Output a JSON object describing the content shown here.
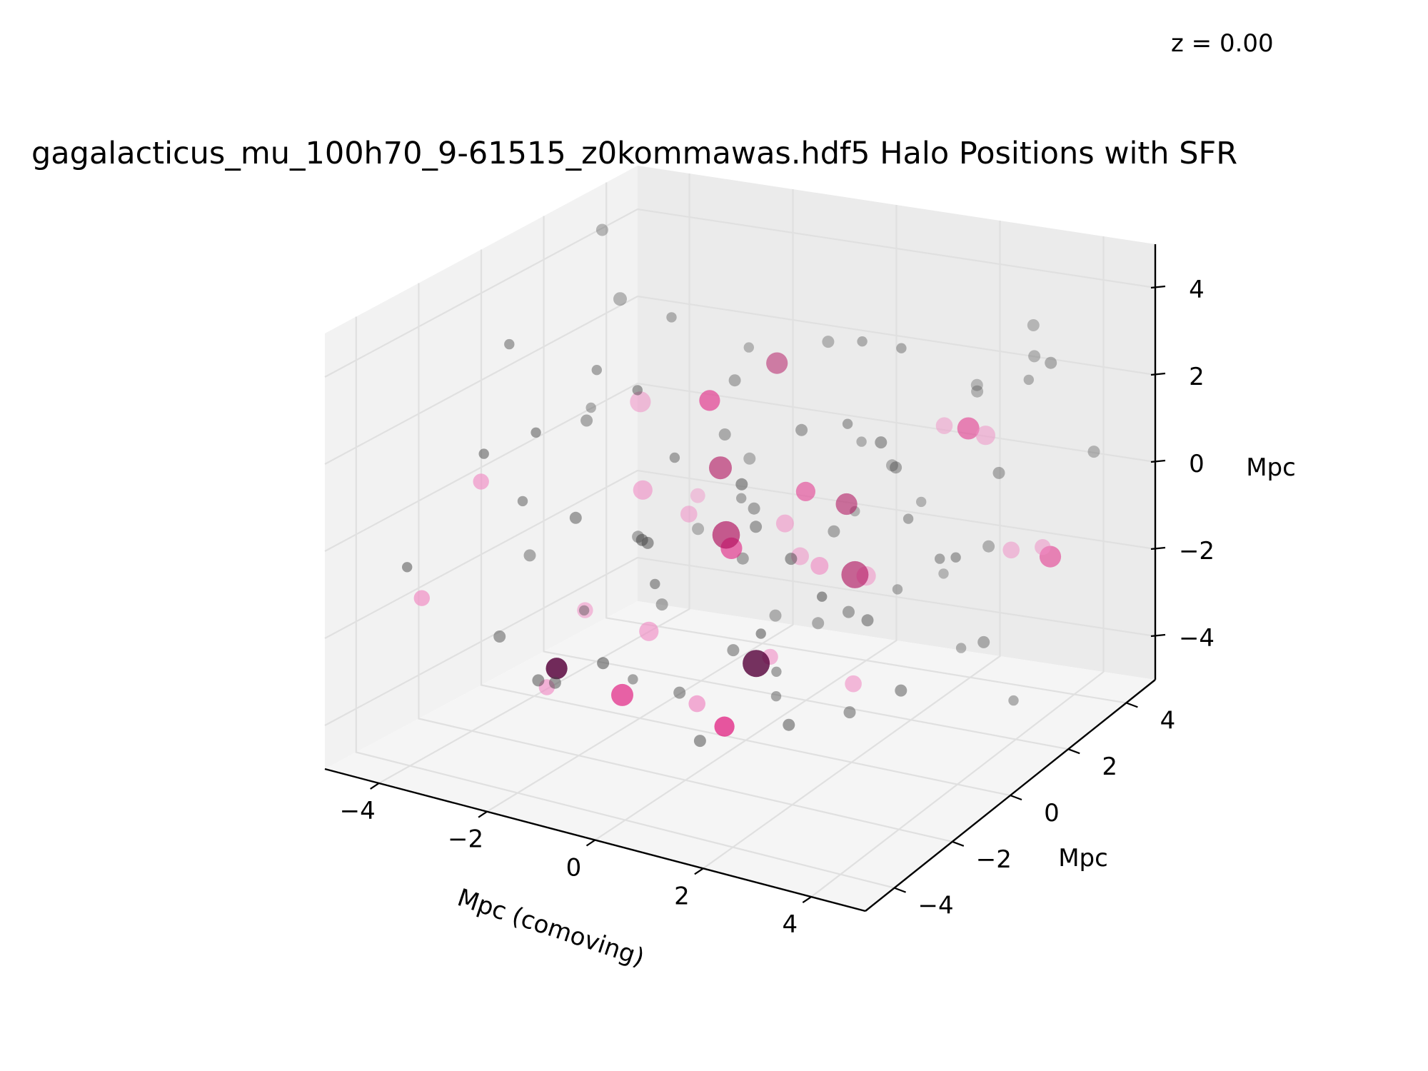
{
  "chart_data": {
    "type": "scatter",
    "projection": "3d",
    "title": "gagalacticus_mu_100h70_9-61515_z0kommawas.hdf5 Halo Positions with SFR",
    "annotation": "z = 0.00",
    "xlabel": "Mpc (comoving)",
    "ylabel": "Mpc",
    "zlabel": "Mpc",
    "xlim": [
      -5,
      5
    ],
    "ylim": [
      -5,
      5
    ],
    "zlim": [
      -5,
      5
    ],
    "x_ticks": [
      -4,
      -2,
      0,
      2,
      4
    ],
    "y_ticks": [
      -4,
      -2,
      0,
      2,
      4
    ],
    "z_ticks": [
      -4,
      -2,
      0,
      2,
      4
    ],
    "x_tick_labels": [
      "−4",
      "−2",
      "0",
      "2",
      "4"
    ],
    "y_tick_labels": [
      "−4",
      "−2",
      "0",
      "2",
      "4"
    ],
    "z_tick_labels": [
      "−4",
      "−2",
      "0",
      "2",
      "4"
    ],
    "grid": true,
    "colors": {
      "pane_back": "#ebebeb",
      "pane_left": "#f2f2f2",
      "pane_floor": "#f5f5f5",
      "grid": "#e0e0e0",
      "no_sfr": "#444444",
      "sfr_low": "#f08cc4",
      "sfr_mid": "#e2348c",
      "sfr_high": "#b0105e",
      "sfr_peak": "#55003a"
    },
    "series": [
      {
        "values": [
          [
            -4.6,
            3.2,
            4.3,
            2
          ],
          [
            -3.9,
            2.6,
            3.1,
            3
          ],
          [
            3.1,
            4.2,
            3.2,
            2
          ],
          [
            4.6,
            3.6,
            0.9,
            2
          ],
          [
            -4.2,
            0.2,
            -1.9,
            2
          ],
          [
            -1.2,
            1.4,
            1.1,
            2
          ],
          [
            0.6,
            2.8,
            0.7,
            1
          ],
          [
            1.4,
            3.4,
            -0.8,
            1
          ],
          [
            -3.4,
            -1.4,
            0.2,
            1
          ],
          [
            -0.4,
            0.6,
            -1.2,
            2
          ],
          [
            2.4,
            1.2,
            0.1,
            1
          ],
          [
            3.8,
            2.8,
            2.8,
            1
          ],
          [
            -2.1,
            -2.6,
            -3.1,
            2
          ],
          [
            1.2,
            -1.1,
            -2.6,
            1
          ],
          [
            2.6,
            -3.2,
            -2.4,
            2
          ],
          [
            4.3,
            -0.6,
            0.6,
            1
          ],
          [
            0.2,
            -3.8,
            1.4,
            2
          ],
          [
            -3.0,
            3.6,
            -2.4,
            2
          ],
          [
            1.7,
            0.4,
            2.5,
            1
          ],
          [
            -0.9,
            -2.0,
            3.7,
            1
          ],
          [
            3.3,
            -1.8,
            -0.5,
            2
          ],
          [
            2.9,
            2.1,
            -3.2,
            1
          ],
          [
            -1.6,
            2.9,
            -0.2,
            2
          ],
          [
            0.8,
            -0.4,
            -3.6,
            1
          ],
          [
            -2.7,
            -0.2,
            2.9,
            1
          ],
          [
            4.0,
            0.9,
            -2.2,
            2
          ],
          [
            -0.3,
            -4.2,
            -1.4,
            2
          ],
          [
            1.9,
            4.4,
            1.5,
            2
          ],
          [
            -4.4,
            -3.4,
            -0.8,
            1
          ],
          [
            3.6,
            -3.9,
            1.2,
            1
          ],
          [
            -1.3,
            1.9,
            2.1,
            2
          ],
          [
            0.4,
            1.7,
            -3.0,
            2
          ],
          [
            2.2,
            -2.4,
            0.9,
            2
          ],
          [
            -3.7,
            1.1,
            -3.4,
            1
          ],
          [
            4.5,
            2.3,
            3.6,
            2
          ],
          [
            -2.2,
            3.9,
            1.8,
            1
          ],
          [
            0.1,
            0.1,
            0.3,
            2
          ],
          [
            1.1,
            1.0,
            -0.4,
            2
          ],
          [
            0.7,
            -0.9,
            0.5,
            2
          ],
          [
            -0.6,
            0.9,
            0.0,
            1
          ],
          [
            2.7,
            3.0,
            2.2,
            2
          ],
          [
            3.4,
            3.7,
            2.8,
            2
          ],
          [
            -3.2,
            -3.0,
            2.0,
            1
          ],
          [
            -1.9,
            -3.5,
            -2.6,
            2
          ],
          [
            0.9,
            2.3,
            3.3,
            1
          ],
          [
            2.0,
            -0.1,
            -1.5,
            2
          ],
          [
            -0.8,
            -1.6,
            -0.9,
            1
          ],
          [
            3.9,
            1.6,
            1.3,
            2
          ],
          [
            -4.1,
            2.0,
            0.8,
            1
          ],
          [
            1.5,
            -2.8,
            2.6,
            2
          ],
          [
            -2.5,
            0.8,
            -1.3,
            2
          ],
          [
            0.3,
            3.1,
            -1.1,
            1
          ],
          [
            2.5,
            0.6,
            1.6,
            2
          ],
          [
            -1.0,
            -0.6,
            1.5,
            1
          ],
          [
            3.0,
            -0.8,
            3.0,
            2
          ],
          [
            -3.6,
            -1.8,
            -2.8,
            2
          ],
          [
            1.8,
            1.9,
            -2.0,
            1
          ],
          [
            -0.2,
            -2.9,
            0.8,
            2
          ],
          [
            4.2,
            -2.3,
            -1.6,
            2
          ],
          [
            -2.8,
            2.4,
            3.0,
            1
          ],
          [
            0.5,
            -1.3,
            -2.2,
            2
          ],
          [
            1.3,
            2.6,
            0.4,
            2
          ],
          [
            -1.5,
            -1.1,
            -3.5,
            1
          ],
          [
            2.8,
            -1.5,
            -2.9,
            2
          ],
          [
            -0.5,
            3.6,
            2.4,
            2
          ],
          [
            3.5,
            0.3,
            -0.1,
            1
          ],
          [
            -3.3,
            0.5,
            1.3,
            2
          ],
          [
            0.0,
            -2.2,
            -2.9,
            2
          ],
          [
            1.6,
            3.8,
            -2.6,
            1
          ],
          [
            -2.0,
            -2.1,
            0.5,
            2
          ],
          [
            2.3,
            -3.6,
            -0.2,
            1
          ],
          [
            -4.0,
            -0.8,
            3.4,
            1
          ],
          [
            0.6,
            0.8,
            1.9,
            2
          ],
          [
            3.2,
            2.5,
            -1.0,
            2
          ],
          [
            -1.7,
            0.2,
            -2.4,
            2
          ],
          [
            2.1,
            1.5,
            3.8,
            1
          ],
          [
            -0.7,
            2.2,
            -3.3,
            2
          ],
          [
            1.0,
            -3.3,
            -3.2,
            2
          ],
          [
            4.4,
            1.2,
            -3.6,
            1
          ],
          [
            -2.4,
            -2.7,
            2.6,
            1
          ]
        ]
      },
      {
        "values": [
          [
            -3.1,
            1.9,
            1.2,
            11
          ],
          [
            -1.6,
            -0.6,
            0.6,
            9
          ],
          [
            0.4,
            0.6,
            -0.2,
            7
          ],
          [
            1.6,
            1.2,
            -1.4,
            9
          ],
          [
            3.2,
            2.4,
            1.6,
            9
          ],
          [
            2.4,
            -1.8,
            0.5,
            7
          ],
          [
            -3.6,
            -2.4,
            1.0,
            5
          ],
          [
            -3.3,
            4.1,
            -1.9,
            4
          ],
          [
            -2.6,
            -2.0,
            -3.6,
            5
          ],
          [
            1.0,
            -3.4,
            -2.3,
            6
          ],
          [
            3.8,
            2.2,
            -0.8,
            6
          ],
          [
            4.4,
            2.2,
            -0.6,
            5
          ],
          [
            -0.8,
            -1.8,
            -1.9,
            9
          ],
          [
            2.2,
            -0.3,
            -3.0,
            6
          ],
          [
            0.0,
            1.8,
            -1.6,
            7
          ],
          [
            0.8,
            -0.6,
            -2.6,
            5
          ],
          [
            1.9,
            3.3,
            1.1,
            6
          ],
          [
            -4.3,
            -3.1,
            -1.6,
            5
          ],
          [
            -2.0,
            1.6,
            -1.0,
            6
          ],
          [
            -3.8,
            1.3,
            -3.5,
            5
          ]
        ]
      },
      {
        "values": [
          [
            -1.3,
            -1.8,
            -3.5,
            13
          ],
          [
            2.7,
            2.7,
            1.5,
            13
          ],
          [
            -0.5,
            0.4,
            -0.9,
            12
          ],
          [
            4.1,
            3.0,
            -1.3,
            12
          ],
          [
            1.4,
            -3.2,
            -2.8,
            10
          ],
          [
            -1.2,
            0.9,
            2.1,
            11
          ],
          [
            -0.7,
            3.2,
            -0.9,
            9
          ]
        ]
      },
      {
        "values": [
          [
            -0.2,
            -0.3,
            -0.2,
            23
          ],
          [
            1.5,
            1.0,
            -1.3,
            22
          ],
          [
            -1.4,
            1.6,
            0.2,
            14
          ],
          [
            0.6,
            2.3,
            -0.5,
            12
          ],
          [
            -1.6,
            3.8,
            1.6,
            12
          ]
        ]
      },
      {
        "values": [
          [
            1.1,
            -1.6,
            -2.2,
            22
          ],
          [
            -2.3,
            -2.2,
            -3.0,
            12
          ]
        ]
      }
    ]
  }
}
